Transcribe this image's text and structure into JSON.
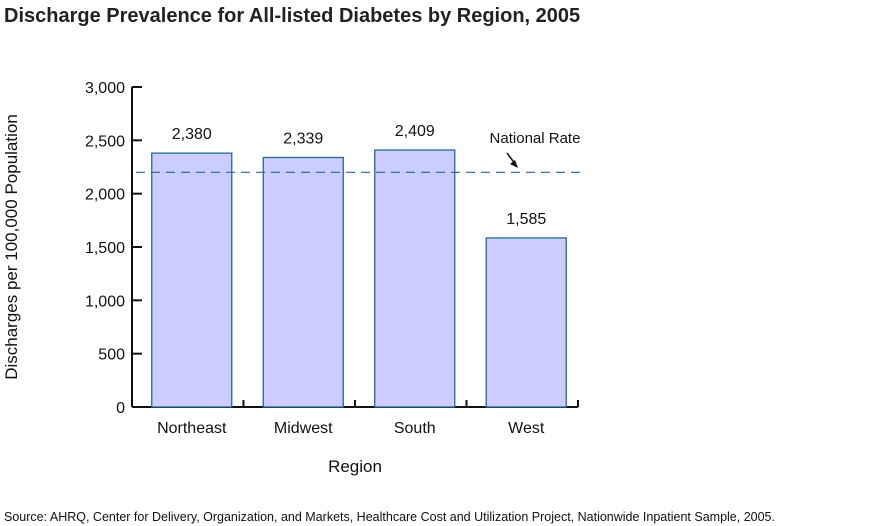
{
  "chart_data": {
    "type": "bar",
    "title": "Discharge Prevalence for All-listed Diabetes by Region, 2005",
    "xlabel": "Region",
    "ylabel": "Discharges per 100,000 Population",
    "categories": [
      "Northeast",
      "Midwest",
      "South",
      "West"
    ],
    "values": [
      2380,
      2339,
      2409,
      1585
    ],
    "data_labels": [
      "2,380",
      "2,339",
      "2,409",
      "1,585"
    ],
    "ylim": [
      0,
      3000
    ],
    "yticks": [
      0,
      500,
      1000,
      1500,
      2000,
      2500,
      3000
    ],
    "ytick_labels": [
      "0",
      "500",
      "1,000",
      "1,500",
      "2,000",
      "2,500",
      "3,000"
    ],
    "grid": false,
    "reference_line": {
      "label": "National Rate",
      "value": 2200
    },
    "colors": {
      "bar_fill": "#ccccff",
      "bar_stroke": "#1f6a96",
      "reference_line": "#1f6a96"
    }
  },
  "source": "Source:  AHRQ, Center for Delivery, Organization, and Markets, Healthcare Cost and Utilization Project, Nationwide Inpatient Sample, 2005."
}
